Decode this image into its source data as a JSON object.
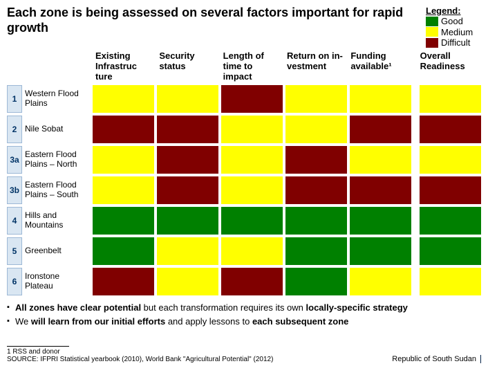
{
  "title": "Each zone is being assessed on several factors important for rapid growth",
  "legend": {
    "title": "Legend:",
    "items": [
      {
        "color": "#008000",
        "label": "Good"
      },
      {
        "color": "#ffff00",
        "label": "Medium"
      },
      {
        "color": "#800000",
        "label": "Difficult"
      }
    ]
  },
  "columns": [
    "Existing Infrastruc ture",
    "Security status",
    "Length of time to impact",
    "Return on in- vestment",
    "Funding available¹",
    "Overall Readiness"
  ],
  "rows": [
    {
      "num": "1",
      "label": "Western Flood Plains",
      "cells": [
        "#ffff00",
        "#ffff00",
        "#800000",
        "#ffff00",
        "#ffff00",
        "#ffff00"
      ]
    },
    {
      "num": "2",
      "label": "Nile Sobat",
      "cells": [
        "#800000",
        "#800000",
        "#ffff00",
        "#ffff00",
        "#800000",
        "#800000"
      ]
    },
    {
      "num": "3a",
      "label": "Eastern Flood Plains – North",
      "cells": [
        "#ffff00",
        "#800000",
        "#ffff00",
        "#800000",
        "#ffff00",
        "#ffff00"
      ]
    },
    {
      "num": "3b",
      "label": "Eastern Flood Plains – South",
      "cells": [
        "#ffff00",
        "#800000",
        "#ffff00",
        "#800000",
        "#800000",
        "#800000"
      ]
    },
    {
      "num": "4",
      "label": "Hills and Mountains",
      "cells": [
        "#008000",
        "#008000",
        "#008000",
        "#008000",
        "#008000",
        "#008000"
      ]
    },
    {
      "num": "5",
      "label": "Greenbelt",
      "cells": [
        "#008000",
        "#ffff00",
        "#ffff00",
        "#008000",
        "#008000",
        "#008000"
      ]
    },
    {
      "num": "6",
      "label": "Ironstone Plateau",
      "cells": [
        "#800000",
        "#ffff00",
        "#800000",
        "#008000",
        "#ffff00",
        "#ffff00"
      ]
    }
  ],
  "bullets": [
    {
      "pre": "",
      "b1": "All zones have clear potential",
      "mid": " but each transformation requires its own ",
      "b2": "locally-specific strategy",
      "post": ""
    },
    {
      "pre": "We ",
      "b1": "will learn from our initial efforts",
      "mid": " and apply lessons to ",
      "b2": "each subsequent zone",
      "post": ""
    }
  ],
  "footnote": "1 RSS and donor",
  "source": "SOURCE: IFPRI Statistical yearbook (2010), World Bank \"Agricultural Potential\" (2012)",
  "footer_right": "Republic of South Sudan"
}
